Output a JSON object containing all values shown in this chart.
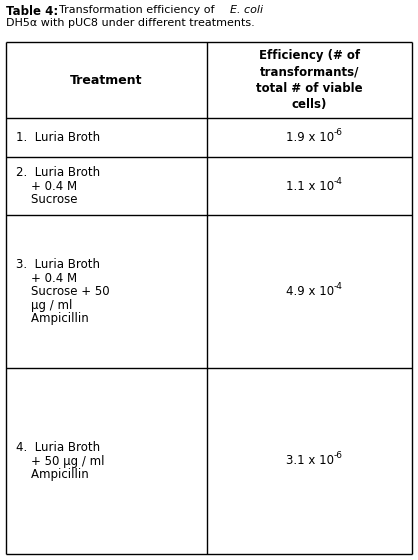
{
  "title_bold": "Table 4:",
  "title_normal": "  Transformation efficiency of ",
  "title_italic": "E. coli",
  "title_line2": "DH5α with pUC8 under different treatments.",
  "col1_header": "Treatment",
  "col2_header": "Efficiency (# of\ntransformants/\ntotal # of viable\ncells)",
  "rows": [
    {
      "treatment_lines": [
        "1.  Luria Broth"
      ],
      "eff_base": "1.9 x 10",
      "eff_exp": "-6"
    },
    {
      "treatment_lines": [
        "2.  Luria Broth",
        "    + 0.4 M",
        "    Sucrose"
      ],
      "eff_base": "1.1 x 10",
      "eff_exp": "-4"
    },
    {
      "treatment_lines": [
        "3.  Luria Broth",
        "    + 0.4 M",
        "    Sucrose + 50",
        "    μg / ml",
        "    Ampicillin"
      ],
      "eff_base": "4.9 x 10",
      "eff_exp": "-4"
    },
    {
      "treatment_lines": [
        "4.  Luria Broth",
        "    + 50 μg / ml",
        "    Ampicillin"
      ],
      "eff_base": "3.1 x 10",
      "eff_exp": "-6"
    }
  ],
  "bg_color": "#ffffff",
  "border_color": "#000000",
  "figwidth": 4.18,
  "figheight": 5.6,
  "dpi": 100
}
